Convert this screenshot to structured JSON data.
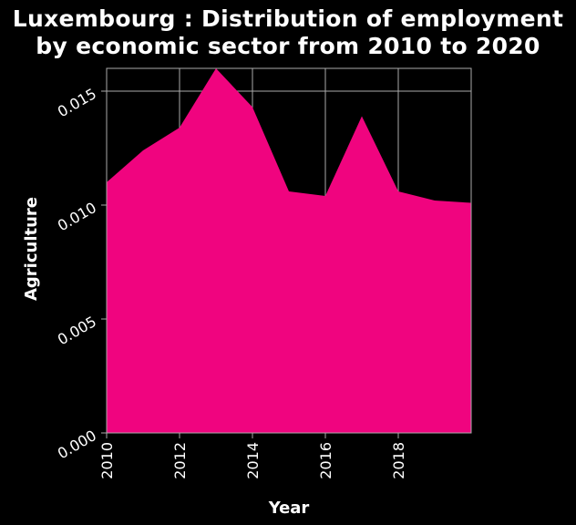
{
  "chart_data": {
    "type": "area",
    "title_line1": "Luxembourg : Distribution of employment",
    "title_line2": "by economic sector from 2010 to 2020",
    "xlabel": "Year",
    "ylabel": "Agriculture",
    "x": [
      2010,
      2011,
      2012,
      2013,
      2014,
      2015,
      2016,
      2017,
      2018,
      2019,
      2020
    ],
    "series": [
      {
        "values": [
          0.011,
          0.0124,
          0.0134,
          0.016,
          0.0143,
          0.0106,
          0.0104,
          0.0139,
          0.0106,
          0.0102,
          0.0101
        ]
      }
    ],
    "xlim": [
      2010,
      2020
    ],
    "ylim": [
      0,
      0.016
    ],
    "x_ticks": [
      "2010",
      "2012",
      "2014",
      "2016",
      "2018"
    ],
    "y_ticks": [
      "0.000",
      "0.005",
      "0.010",
      "0.015"
    ],
    "grid": true,
    "colors": {
      "area": "#f0047f",
      "background": "#000000",
      "grid": "#aaaaaa",
      "text": "#ffffff"
    }
  }
}
